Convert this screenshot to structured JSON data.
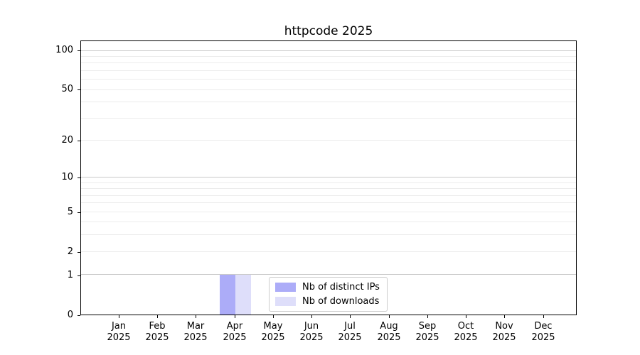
{
  "chart_data": {
    "type": "bar",
    "title": "httpcode 2025",
    "categories": [
      "Jan",
      "Feb",
      "Mar",
      "Apr",
      "May",
      "Jun",
      "Jul",
      "Aug",
      "Sep",
      "Oct",
      "Nov",
      "Dec"
    ],
    "year_label": "2025",
    "series": [
      {
        "name": "Nb of distinct IPs",
        "color": "#acacf8",
        "values": [
          0,
          0,
          0,
          1,
          0,
          0,
          0,
          0,
          0,
          0,
          0,
          0
        ]
      },
      {
        "name": "Nb of downloads",
        "color": "#dedefa",
        "values": [
          0,
          0,
          0,
          1,
          0,
          0,
          0,
          0,
          0,
          0,
          0,
          0
        ]
      }
    ],
    "yscale": "log10(1+v)",
    "yticks": [
      0,
      1,
      2,
      5,
      10,
      20,
      50,
      100
    ],
    "y_major_gridlines": [
      1,
      10,
      100
    ],
    "y_minor_gridlines": [
      2,
      3,
      4,
      5,
      6,
      7,
      8,
      9,
      20,
      30,
      40,
      50,
      60,
      70,
      80,
      90
    ],
    "ylim": [
      0,
      118.6
    ],
    "grid": true,
    "legend_position": "lower center"
  },
  "legend": {
    "items": [
      {
        "label": "Nb of distinct IPs"
      },
      {
        "label": "Nb of downloads"
      }
    ]
  },
  "colors": {
    "background": "#ffffff",
    "axis": "#000000",
    "grid_major": "#c9c9c9",
    "grid_minor": "#ececec",
    "legend_border": "#cccccc",
    "bar_distinct_ips": "#acacf8",
    "bar_downloads": "#dedefa"
  }
}
